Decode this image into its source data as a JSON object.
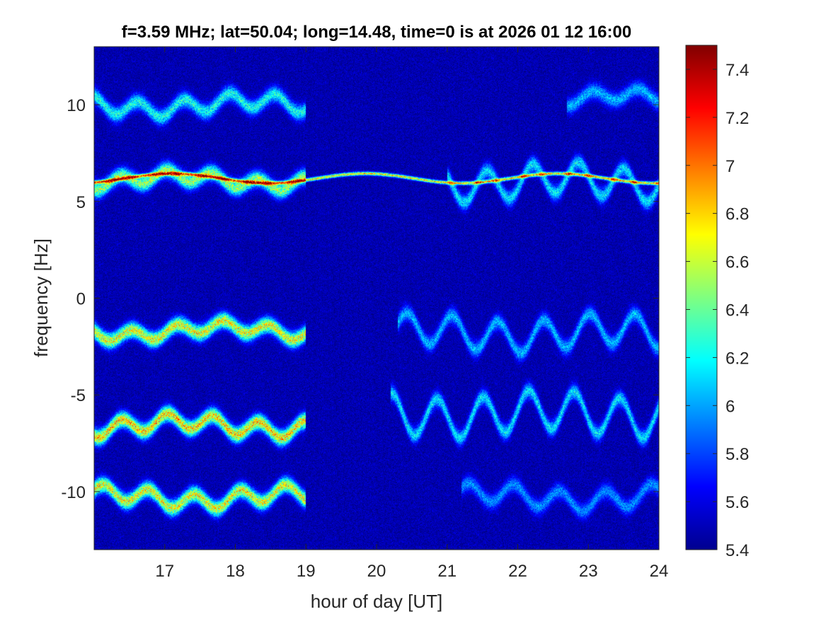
{
  "chart_data": {
    "type": "heatmap",
    "title": "f=3.59 MHz;  lat=50.04; long=14.48, time=0 is at 2026 01 12 16:00",
    "xlabel": "hour of day [UT]",
    "ylabel": "frequency [Hz]",
    "xlim": [
      16,
      24
    ],
    "ylim": [
      -13,
      13
    ],
    "x_ticks": [
      17,
      18,
      19,
      20,
      21,
      22,
      23,
      24
    ],
    "y_ticks": [
      -10,
      -5,
      0,
      5,
      10
    ],
    "colorbar": {
      "limits": [
        5.4,
        7.5
      ],
      "ticks": [
        5.4,
        5.6,
        5.8,
        6,
        6.2,
        6.4,
        6.6,
        6.8,
        7,
        7.2,
        7.4
      ],
      "colormap": "jet"
    },
    "background_level": 5.5,
    "traces": [
      {
        "name": "",
        "segments": [
          [
            16.0,
            19.0,
            10.0,
            0.4,
            2.5,
            6.3
          ],
          [
            22.7,
            24.0,
            10.3,
            0.3,
            1.0,
            6.1
          ]
        ]
      },
      {
        "name": "",
        "segments": [
          [
            16.0,
            24.0,
            6.2,
            0.05,
            0,
            6.9
          ]
        ]
      },
      {
        "name": "",
        "segments": [
          [
            16.0,
            19.0,
            6.1,
            0.3,
            2.5,
            6.6
          ],
          [
            21.0,
            24.0,
            6.0,
            0.8,
            1.0,
            6.2
          ]
        ]
      },
      {
        "name": "",
        "segments": [
          [
            16.0,
            19.0,
            -1.7,
            0.3,
            2.5,
            6.8
          ],
          [
            20.3,
            24.0,
            -1.8,
            0.8,
            1.0,
            6.1
          ]
        ]
      },
      {
        "name": "",
        "segments": [
          [
            16.0,
            19.0,
            -6.6,
            0.4,
            2.5,
            6.9
          ],
          [
            20.2,
            24.0,
            -6.0,
            1.0,
            1.0,
            6.2
          ]
        ]
      },
      {
        "name": "",
        "segments": [
          [
            16.0,
            19.0,
            -10.3,
            0.4,
            2.5,
            6.8
          ],
          [
            21.2,
            24.0,
            -10.3,
            0.5,
            1.0,
            6.0
          ]
        ]
      }
    ]
  }
}
